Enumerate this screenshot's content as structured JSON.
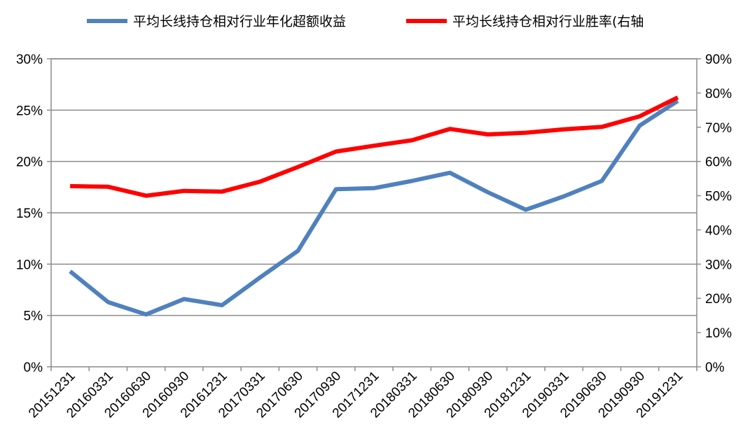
{
  "chart_data": {
    "type": "line",
    "categories": [
      "20151231",
      "20160331",
      "20160630",
      "20160930",
      "20161231",
      "20170331",
      "20170630",
      "20170930",
      "20171231",
      "20180331",
      "20180630",
      "20180930",
      "20181231",
      "20190331",
      "20190630",
      "20190930",
      "20191231"
    ],
    "series": [
      {
        "name": "平均长线持仓相对行业年化超额收益",
        "axis": "left",
        "color": "#4F81BD",
        "values": [
          9.3,
          6.3,
          5.1,
          6.6,
          6.0,
          8.7,
          11.3,
          17.3,
          17.4,
          18.1,
          18.9,
          17.0,
          15.3,
          16.6,
          18.1,
          23.5,
          25.9
        ]
      },
      {
        "name": "平均长线持仓相对行业胜率(右轴",
        "axis": "right",
        "color": "#FF0000",
        "values": [
          52.8,
          52.6,
          50.0,
          51.4,
          51.2,
          54.1,
          58.4,
          62.9,
          64.6,
          66.2,
          69.5,
          67.9,
          68.4,
          69.4,
          70.1,
          73.2,
          78.7
        ]
      }
    ],
    "y_left": {
      "min": 0,
      "max": 30,
      "step": 5,
      "unit": "%"
    },
    "y_right": {
      "min": 0,
      "max": 90,
      "step": 10,
      "unit": "%"
    },
    "grid": true,
    "legend_position": "top"
  }
}
